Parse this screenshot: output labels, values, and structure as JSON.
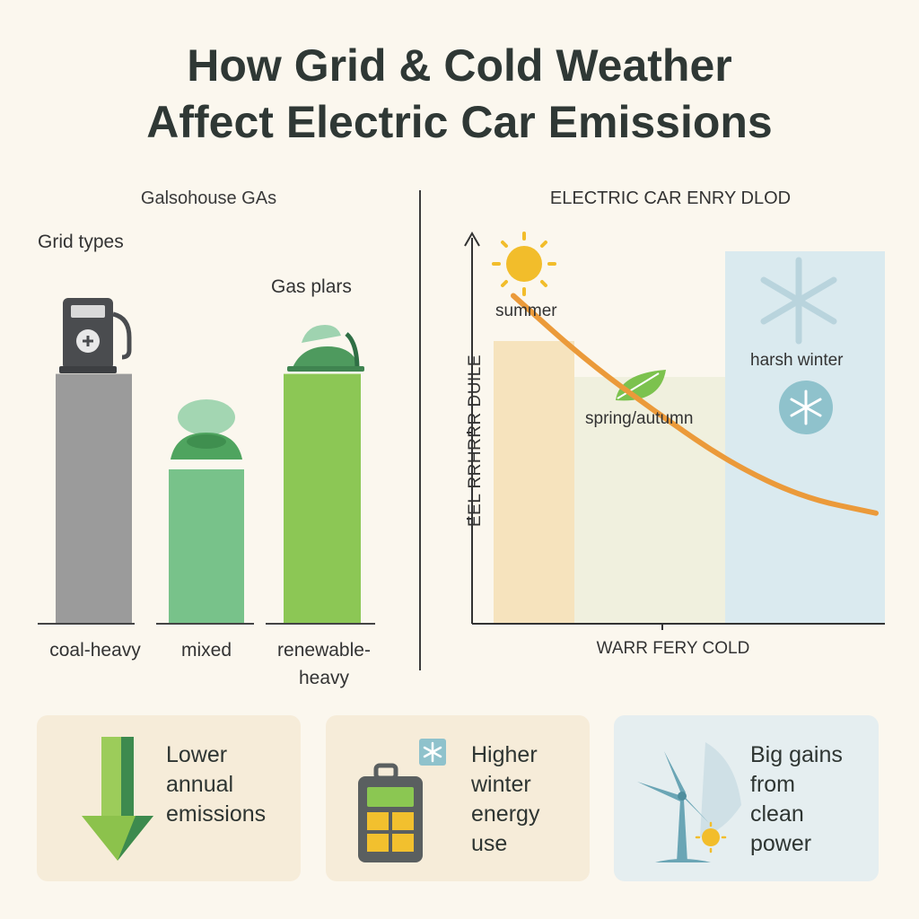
{
  "title_line1": "How Grid & Cold Weather",
  "title_line2": "Affect Electric Car Emissions",
  "left_panel": {
    "heading": "Galsohouse GAs",
    "grid_types_label": "Grid types",
    "gas_plants_label": "Gas plars"
  },
  "right_panel": {
    "heading": "ELECTRIC CAR ENRY DLOD",
    "seasons": {
      "summer": "summer",
      "spring_autumn": "spring/autumn",
      "harsh_winter": "harsh winter"
    }
  },
  "cards": [
    {
      "text_lines": [
        "Lower",
        "annual",
        "emissions"
      ],
      "icon": "down-arrow-icon"
    },
    {
      "text_lines": [
        "Higher",
        "winter",
        "energy",
        "use"
      ],
      "icon": "battery-snowflake-icon"
    },
    {
      "text_lines": [
        "Big gains",
        "from",
        "clean",
        "power"
      ],
      "icon": "wind-turbine-icon"
    }
  ],
  "colors": {
    "coal": "#9b9b9b",
    "mixed": "#78c28a",
    "renewable": "#8cc755",
    "line": "#eb9a3a",
    "summer_band": "#f5dfb4",
    "spring_band": "#eeeedb",
    "winter_band": "#d6e8ee"
  },
  "chart_data": [
    {
      "type": "bar",
      "title": "Galsohouse GAs",
      "categories": [
        "coal-heavy",
        "mixed",
        "renewable-heavy"
      ],
      "category_display": [
        [
          "coal-heavy"
        ],
        [
          "mixed"
        ],
        [
          "renewable-",
          "heavy"
        ]
      ],
      "values": [
        0.73,
        0.45,
        0.73
      ],
      "value_scale": "relative (no axis printed)",
      "icons": [
        "fuel-pump-icon",
        "green-blob-icon",
        "green-machine-icon"
      ],
      "annotation": "Gas plars"
    },
    {
      "type": "line",
      "title": "ELECTRIC CAR ENRY DLOD",
      "xlabel": "WARR FERY COLD",
      "ylabel": "EEL RRHRRR DUILE",
      "bands": [
        "summer",
        "spring/autumn",
        "harsh winter"
      ],
      "x": [
        0,
        0.2,
        0.4,
        0.6,
        0.8,
        1.0
      ],
      "y": [
        0.86,
        0.69,
        0.55,
        0.42,
        0.33,
        0.29
      ],
      "value_scale": "relative (no tick labels printed)"
    }
  ]
}
